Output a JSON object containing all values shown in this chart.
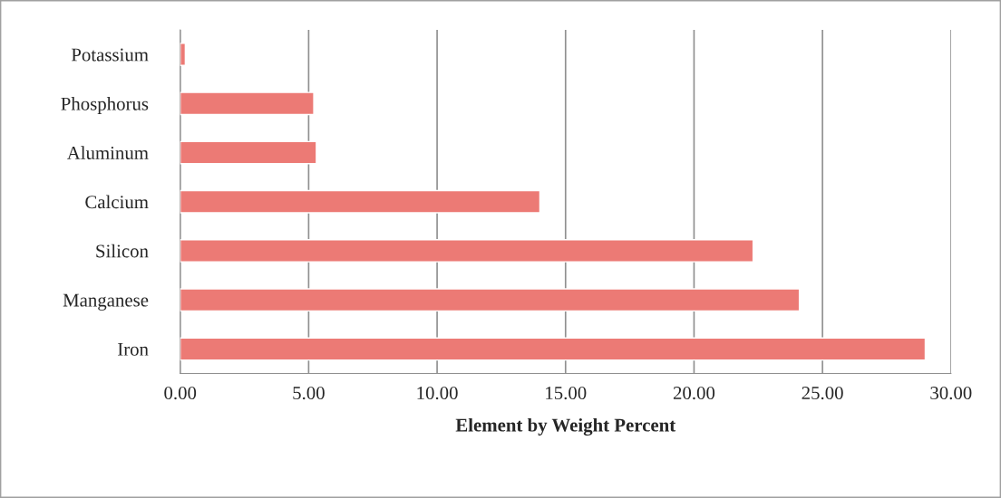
{
  "chart_data": {
    "type": "bar",
    "orientation": "horizontal",
    "xlabel": "Element by Weight Percent",
    "categories": [
      "Potassium",
      "Phosphorus",
      "Aluminum",
      "Calcium",
      "Silicon",
      "Manganese",
      "Iron"
    ],
    "values": [
      0.2,
      5.2,
      5.3,
      14.0,
      22.3,
      24.1,
      29.0
    ],
    "color": "#ec7a75",
    "xlim": [
      0,
      30
    ],
    "xticks": [
      {
        "value": 0,
        "label": "0.00"
      },
      {
        "value": 5,
        "label": "5.00"
      },
      {
        "value": 10,
        "label": "10.00"
      },
      {
        "value": 15,
        "label": "15.00"
      },
      {
        "value": 20,
        "label": "20.00"
      },
      {
        "value": 25,
        "label": "25.00"
      },
      {
        "value": 30,
        "label": "30.00"
      }
    ],
    "grid": "x"
  }
}
